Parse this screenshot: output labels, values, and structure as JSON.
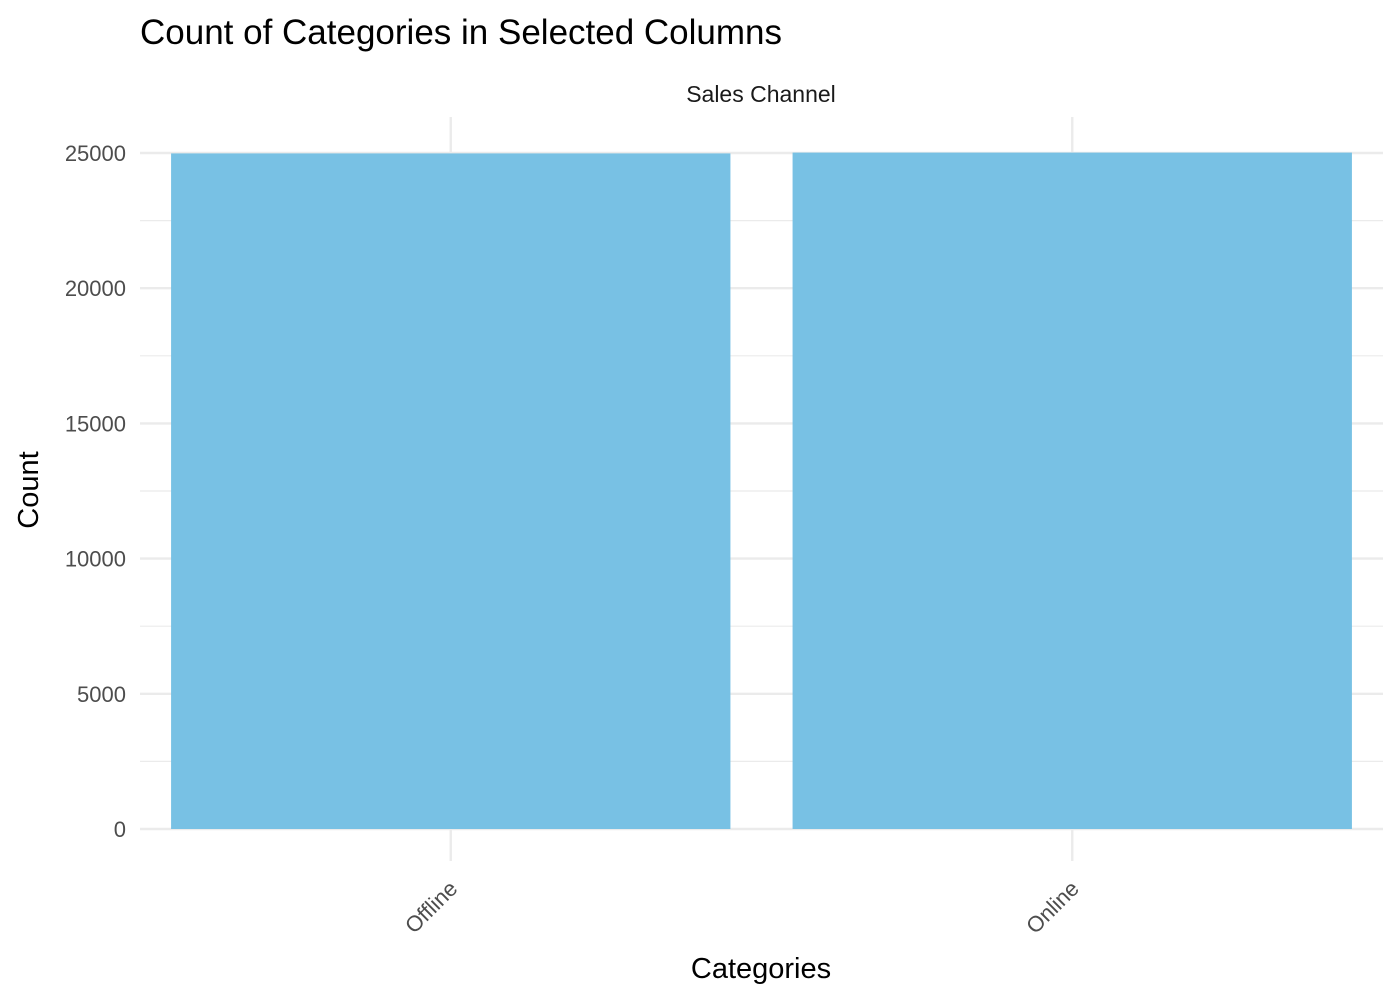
{
  "chart_data": {
    "type": "bar",
    "title": "Count of Categories in Selected Columns",
    "facet_label": "Sales Channel",
    "xlabel": "Categories",
    "ylabel": "Count",
    "categories": [
      "Offline",
      "Online"
    ],
    "values": [
      24985,
      25015
    ],
    "ylim": [
      0,
      26300
    ],
    "y_ticks": [
      0,
      5000,
      10000,
      15000,
      20000,
      25000
    ],
    "y_tick_labels": [
      "0",
      "5000",
      "10000",
      "15000",
      "20000",
      "25000"
    ],
    "grid": true,
    "legend": "none",
    "bar_color": "#78C1E4"
  }
}
